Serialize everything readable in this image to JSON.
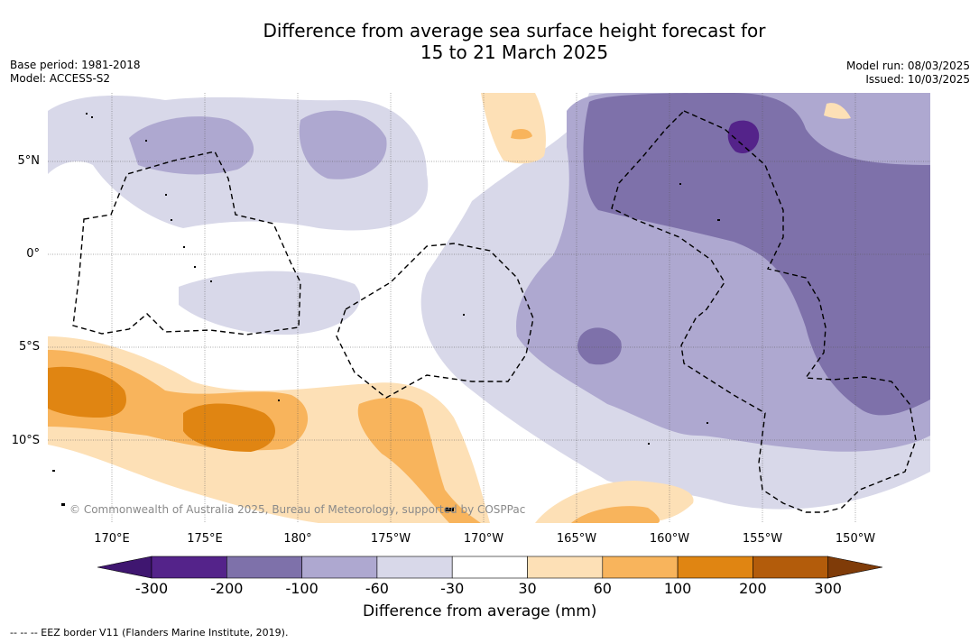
{
  "title_line1": "Difference from average sea surface height forecast for",
  "title_line2": "15 to 21 March 2025",
  "base_period": "Base period: 1981-2018",
  "model": "Model: ACCESS-S2",
  "model_run": "Model run: 08/03/2025",
  "issued": "Issued: 10/03/2025",
  "copyright": "© Commonwealth of Australia 2025, Bureau of Meteorology, supported by COSPPac",
  "lat_labels": [
    "5°N",
    "0°",
    "5°S",
    "10°S"
  ],
  "lon_labels": [
    "170°E",
    "175°E",
    "180°",
    "175°W",
    "170°W",
    "165°W",
    "160°W",
    "155°W",
    "150°W"
  ],
  "colorbar": {
    "ticks": [
      "-300",
      "-200",
      "-100",
      "-60",
      "-30",
      "30",
      "60",
      "100",
      "200",
      "300"
    ],
    "colors": [
      "#3f1670",
      "#54238a",
      "#7e71aa",
      "#aea8d0",
      "#d8d8e9",
      "#ffffff",
      "#fde0b6",
      "#f8b45c",
      "#e08512",
      "#b35c0b",
      "#7f3b08"
    ],
    "label": "Difference from average (mm)"
  },
  "footnote": "--  --  -- EEZ border V11 (Flanders Marine Institute, 2019)."
}
